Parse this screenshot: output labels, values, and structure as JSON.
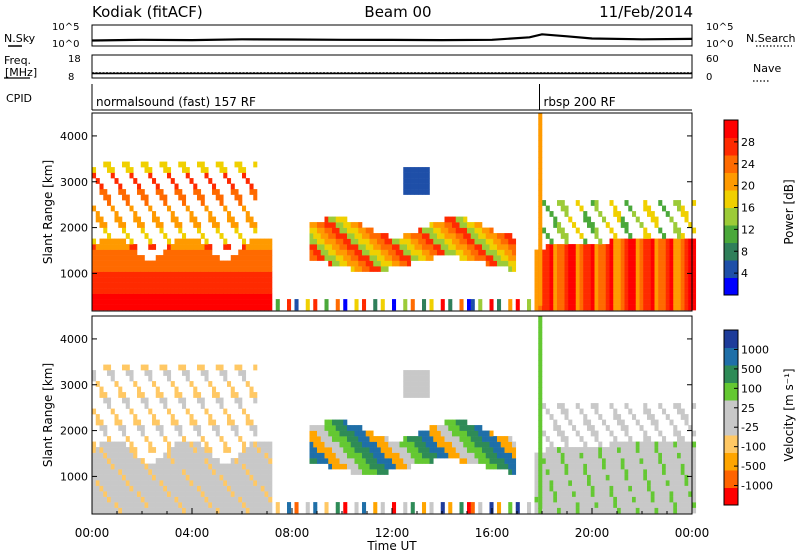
{
  "header": {
    "station": "Kodiak (fitACF)",
    "beam": "Beam 00",
    "date": "11/Feb/2014"
  },
  "strip_labels": {
    "nsky": "N.Sky",
    "nsearch": "N.Search",
    "freq_line1": "Freq.",
    "freq_line2": "[MHz]",
    "nave": "Nave",
    "cpid": "CPID"
  },
  "cpid_segments": [
    {
      "label": "normalsound (fast) 157 RF",
      "start_hour": 0
    },
    {
      "label": "rbsp 200 RF",
      "start_hour": 17.9
    }
  ],
  "colors": {
    "noise_trace": "#000000",
    "background": "#ffffff",
    "power_scale": [
      "#0000ff",
      "#1e4fa8",
      "#2f7f5a",
      "#4aa83a",
      "#9ccb38",
      "#f0d000",
      "#ff9a00",
      "#ff6a00",
      "#ff2a00",
      "#ff0000"
    ],
    "velocity_scale": [
      "#ff0000",
      "#ff6400",
      "#ffa500",
      "#ffc864",
      "#c8c8c8",
      "#c8c8c8",
      "#64c832",
      "#2e8b57",
      "#1f6fa8",
      "#1e3c9a"
    ]
  },
  "chart_data": [
    {
      "type": "line",
      "panel": "noise",
      "ylabel": "N.Sky",
      "y2label": "N.Search",
      "ylim": [
        1,
        100000
      ],
      "yscale": "log",
      "yticks": [
        "10^5",
        "10^0"
      ],
      "y2ticks": [
        "10^5",
        "10^0"
      ],
      "x": [
        0,
        2,
        4,
        6,
        8,
        10,
        12,
        14,
        16,
        17.5,
        18,
        19,
        20,
        22,
        24
      ],
      "series": [
        {
          "name": "N.Sky",
          "values": [
            20,
            30,
            25,
            40,
            35,
            30,
            28,
            25,
            30,
            120,
            600,
            200,
            60,
            40,
            50
          ]
        }
      ]
    },
    {
      "type": "line",
      "panel": "freq_nave",
      "ylabel": "Freq. [MHz]",
      "y2label": "Nave",
      "ylim": [
        8,
        18
      ],
      "y2lim": [
        0,
        60
      ],
      "yticks": [
        "18",
        "8"
      ],
      "y2ticks": [
        "60",
        "0"
      ],
      "x": [
        0,
        24
      ],
      "series": [
        {
          "name": "Freq.",
          "values": [
            10.2,
            10.2
          ]
        },
        {
          "name": "Nave",
          "values": [
            12,
            12
          ]
        }
      ]
    },
    {
      "type": "heatmap",
      "panel": "power",
      "ylabel": "Slant Range [km]",
      "colorbar_label": "Power [dB]",
      "colorbar_ticks": [
        "4",
        "8",
        "12",
        "16",
        "20",
        "24",
        "28"
      ],
      "ylim": [
        180,
        4500
      ],
      "yticks": [
        "1000",
        "2000",
        "3000",
        "4000"
      ],
      "xlim": [
        0,
        24
      ]
    },
    {
      "type": "heatmap",
      "panel": "velocity",
      "ylabel": "Slant Range [km]",
      "colorbar_label": "Velocity [m s⁻¹]",
      "colorbar_ticks": [
        "-1000",
        "-500",
        "-100",
        "-25",
        "25",
        "100",
        "500",
        "1000"
      ],
      "ylim": [
        180,
        4500
      ],
      "yticks": [
        "1000",
        "2000",
        "3000",
        "4000"
      ],
      "xlim": [
        0,
        24
      ],
      "xlabel": "Time UT",
      "xticks": [
        "00:00",
        "04:00",
        "08:00",
        "12:00",
        "16:00",
        "20:00",
        "00:00"
      ]
    }
  ]
}
